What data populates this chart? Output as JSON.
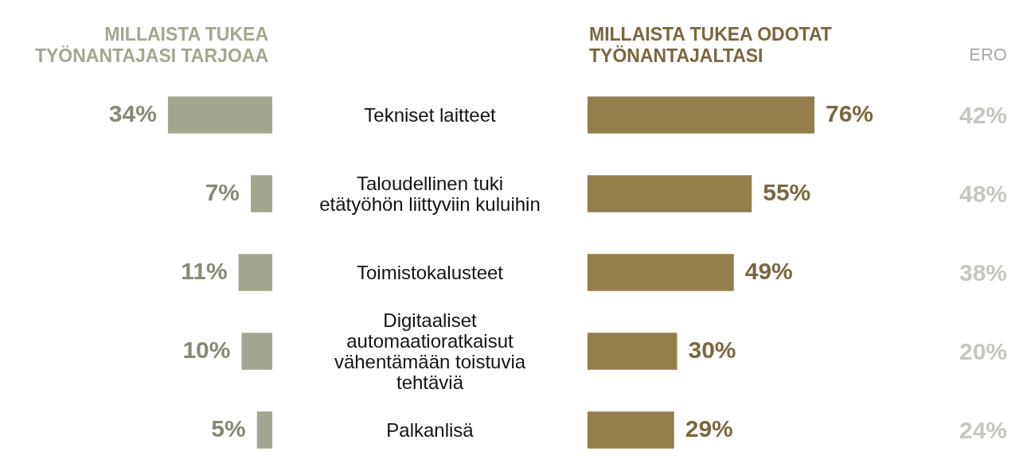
{
  "chart_data": [
    {
      "type": "bar",
      "orientation": "horizontal",
      "tick_labels": "y",
      "categories": [
        "Tekniset laitteet",
        "Taloudellinen tuki\netätyöhön liittyviin kuluihin",
        "Toimistokalusteet",
        "Digitaaliset\nautomaatioratkaisut\nvähentämään toistuvia\ntehtäviä",
        "Palkanlisä"
      ],
      "series": [
        {
          "name": "MILLAISTA TUKEA\nTYÖNANTAJASI TARJOAA",
          "color": "#a5a690",
          "values": [
            34,
            7,
            11,
            10,
            5
          ],
          "value_labels": [
            "34%",
            "7%",
            "11%",
            "10%",
            "5%"
          ]
        }
      ]
    },
    {
      "type": "bar",
      "orientation": "horizontal",
      "tick_labels": false,
      "categories": [
        null,
        null,
        null,
        null,
        null
      ],
      "series": [
        {
          "name": "MILLAISTA TUKEA ODOTAT\nTYÖNANTAJALTASI",
          "color": "#937e4c",
          "values": [
            76,
            55,
            49,
            30,
            29
          ],
          "value_labels": [
            "76%",
            "55%",
            "49%",
            "30%",
            "29%"
          ]
        }
      ],
      "annotations": [
        "ERO",
        "42%",
        "48%",
        "38%",
        "20%",
        "24%"
      ]
    }
  ]
}
